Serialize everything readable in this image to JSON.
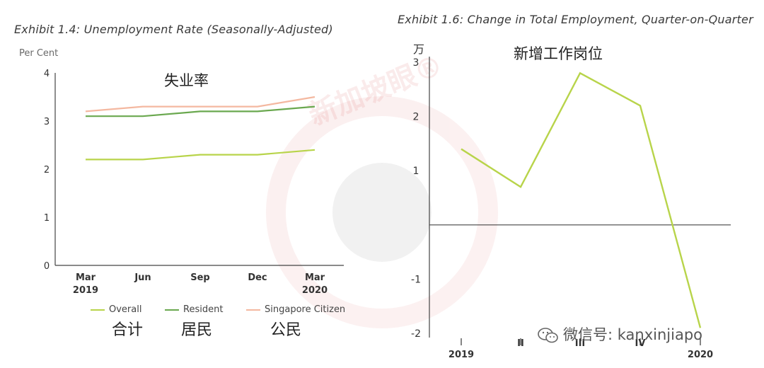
{
  "watermark": {
    "brand_text": "新加坡眼®",
    "wechat_label": "微信号: kanxinjiapo"
  },
  "left_chart": {
    "title": "Exhibit 1.4: Unemployment Rate (Seasonally-Adjusted)",
    "unit_label": "Per Cent",
    "cn_title": "失业率",
    "legend_cn": [
      "合计",
      "居民",
      "公民"
    ]
  },
  "right_chart": {
    "title": "Exhibit 1.6: Change in Total Employment, Quarter-on-Quarter",
    "unit_label": "万",
    "cn_title": "新增工作岗位"
  },
  "chart_data": [
    {
      "type": "line",
      "title": "Exhibit 1.4: Unemployment Rate (Seasonally-Adjusted)",
      "ylabel": "Per Cent",
      "categories": [
        "Mar\n2019",
        "Jun",
        "Sep",
        "Dec",
        "Mar\n2020"
      ],
      "ylim": [
        0,
        4
      ],
      "yticks": [
        0,
        1,
        2,
        3,
        4
      ],
      "grid": false,
      "legend_position": "bottom",
      "series": [
        {
          "name": "Overall",
          "color": "#b8d44a",
          "values": [
            2.2,
            2.2,
            2.3,
            2.3,
            2.4
          ]
        },
        {
          "name": "Resident",
          "color": "#6aa84f",
          "values": [
            3.1,
            3.1,
            3.2,
            3.2,
            3.3
          ]
        },
        {
          "name": "Singapore Citizen",
          "color": "#f4b8a0",
          "values": [
            3.2,
            3.3,
            3.3,
            3.3,
            3.5
          ]
        }
      ]
    },
    {
      "type": "line",
      "title": "Exhibit 1.6: Change in Total Employment, Quarter-on-Quarter",
      "ylabel": "万",
      "categories": [
        "2019",
        "II",
        "III",
        "IV",
        "2020"
      ],
      "ylim": [
        -2,
        3
      ],
      "yticks": [
        -2,
        -1,
        0,
        1,
        2,
        3
      ],
      "ytick_labels": [
        "-2",
        "-1",
        "",
        "1",
        "2",
        "3"
      ],
      "grid": false,
      "series": [
        {
          "color": "#b8d44a",
          "values": [
            1.4,
            0.7,
            2.8,
            2.2,
            -1.9
          ]
        }
      ]
    }
  ]
}
